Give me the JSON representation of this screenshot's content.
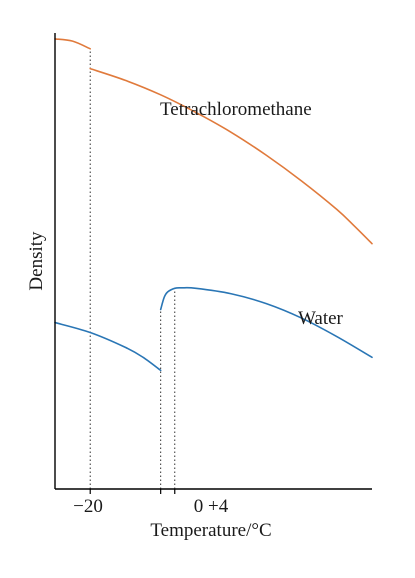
{
  "chart_data": {
    "type": "line",
    "xlabel": "Temperature/°C",
    "ylabel": "Density",
    "xlim": [
      -30,
      60
    ],
    "ylim": [
      0,
      100
    ],
    "x_ticks": [
      {
        "value": -20,
        "label": "−20"
      },
      {
        "value": 0,
        "label": "0"
      },
      {
        "value": 4,
        "label": "+4"
      }
    ],
    "x_tick_text_combined": "0 +4",
    "series": [
      {
        "name": "Tetrachloromethane",
        "color": "#e07a3c",
        "segments": [
          [
            [
              -30,
              99.8
            ],
            [
              -25,
              99.3
            ],
            [
              -20,
              97.6
            ]
          ],
          [
            [
              -20,
              93.2
            ],
            [
              -10,
              90.6
            ],
            [
              0,
              87.4
            ],
            [
              10,
              83.5
            ],
            [
              20,
              79.1
            ],
            [
              30,
              74.0
            ],
            [
              40,
              68.3
            ],
            [
              50,
              62.0
            ],
            [
              55,
              58.3
            ],
            [
              60,
              54.4
            ]
          ]
        ]
      },
      {
        "name": "Water",
        "color": "#2a76b5",
        "segments": [
          [
            [
              -30,
              36.9
            ],
            [
              -20,
              34.7
            ],
            [
              -10,
              31.4
            ],
            [
              -5,
              29.2
            ],
            [
              0,
              26.3
            ]
          ],
          [
            [
              0,
              39.8
            ],
            [
              1,
              42.5
            ],
            [
              2,
              43.7
            ],
            [
              4,
              44.5
            ],
            [
              6,
              44.6
            ],
            [
              10,
              44.5
            ],
            [
              20,
              43.3
            ],
            [
              30,
              41.1
            ],
            [
              40,
              37.9
            ],
            [
              50,
              33.8
            ],
            [
              60,
              29.2
            ]
          ]
        ]
      }
    ],
    "annotations": [
      "Tetrachloromethane",
      "Water"
    ],
    "legend": "none",
    "grid": false
  }
}
